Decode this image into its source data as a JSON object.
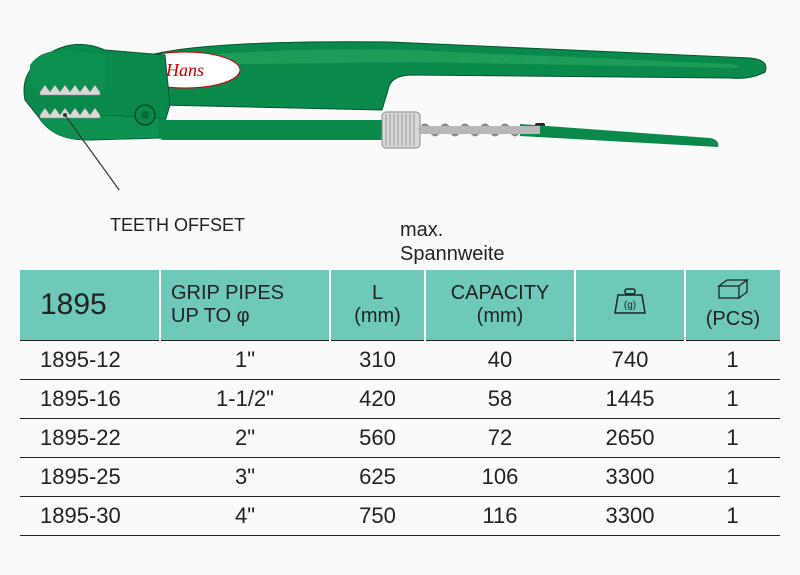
{
  "product": {
    "brand": "Hans",
    "callout": "TEETH OFFSET",
    "color_main": "#0a8a4a",
    "color_dark": "#066a38",
    "color_light": "#2aa860",
    "color_metal": "#b8b8b8",
    "color_metal_light": "#d8d8d8",
    "handle_text": "CHROME VANADIUM"
  },
  "spannweite": {
    "line1": "max.",
    "line2": "Spannweite"
  },
  "table": {
    "header_bg": "#6ec9b9",
    "model_header": "1895",
    "columns": {
      "grip_l1": "GRIP PIPES",
      "grip_l2": "UP TO  φ",
      "l_l1": "L",
      "l_l2": "(mm)",
      "cap_l1": "CAPACITY",
      "cap_l2": "(mm)",
      "weight_unit": "(g)",
      "pcs": "(PCS)"
    },
    "rows": [
      {
        "model": "1895-12",
        "grip": "1\"",
        "l": "310",
        "cap": "40",
        "wt": "740",
        "pcs": "1"
      },
      {
        "model": "1895-16",
        "grip": "1-1/2\"",
        "l": "420",
        "cap": "58",
        "wt": "1445",
        "pcs": "1"
      },
      {
        "model": "1895-22",
        "grip": "2\"",
        "l": "560",
        "cap": "72",
        "wt": "2650",
        "pcs": "1"
      },
      {
        "model": "1895-25",
        "grip": "3\"",
        "l": "625",
        "cap": "106",
        "wt": "3300",
        "pcs": "1"
      },
      {
        "model": "1895-30",
        "grip": "4\"",
        "l": "750",
        "cap": "116",
        "wt": "3300",
        "pcs": "1"
      }
    ]
  }
}
